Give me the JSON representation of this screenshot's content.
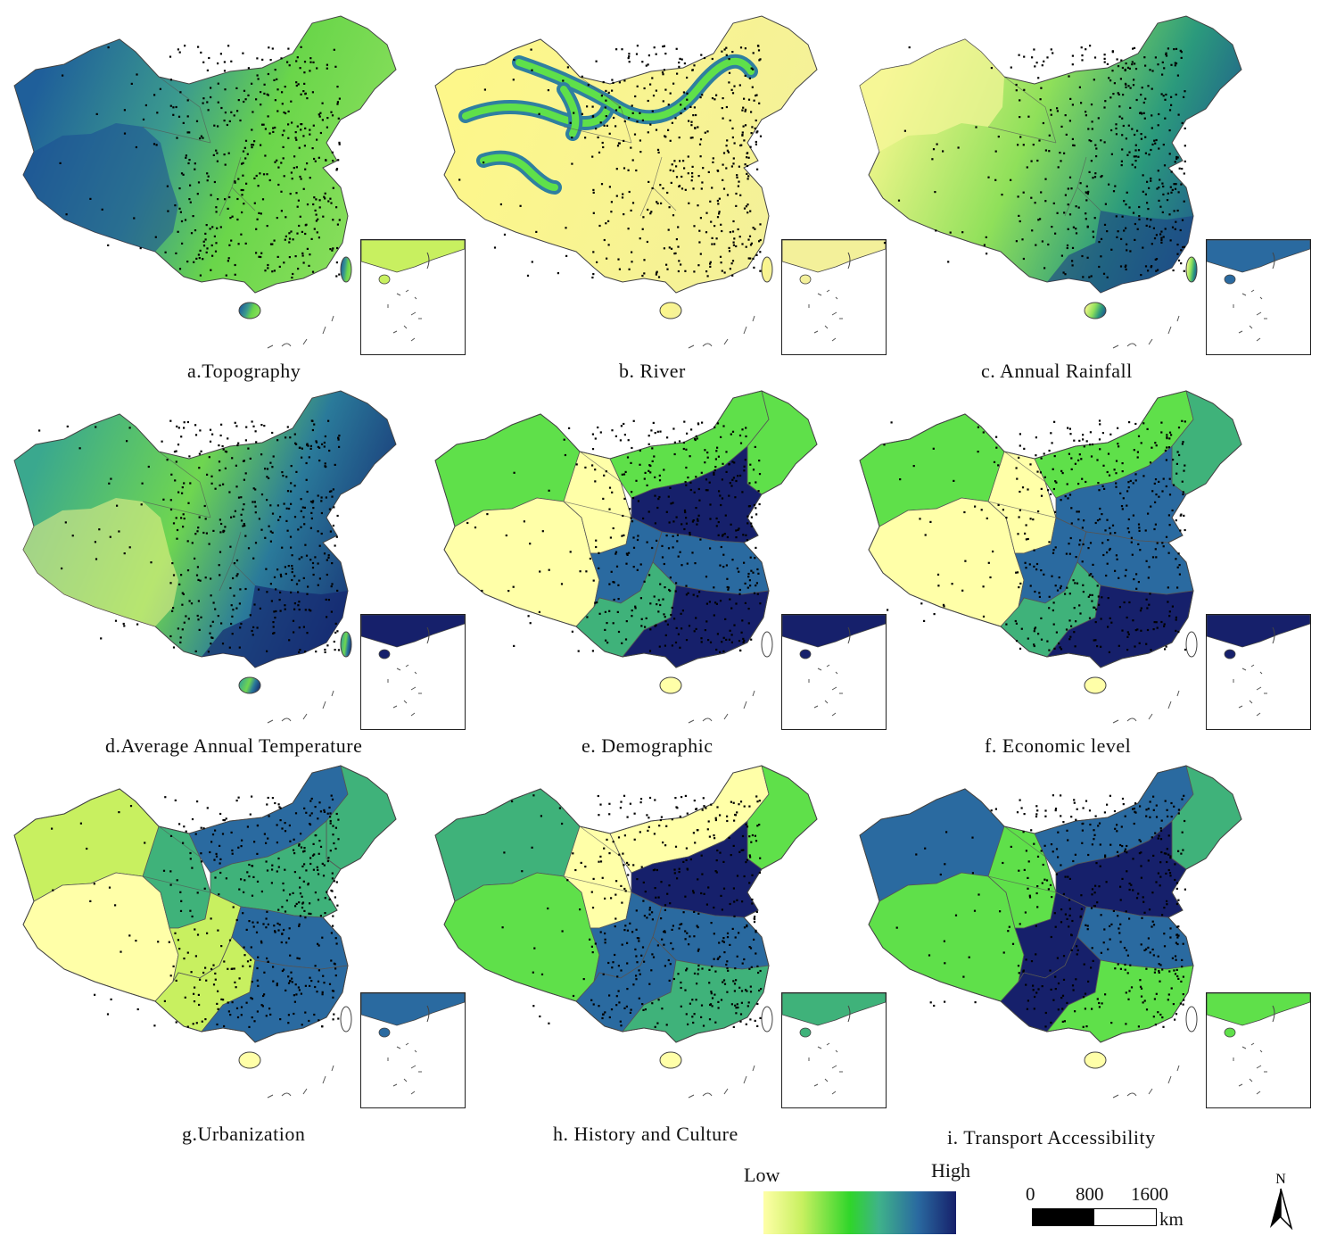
{
  "panels": [
    {
      "caption": "a.Topography",
      "style": "topography"
    },
    {
      "caption": "b. River",
      "style": "river"
    },
    {
      "caption": "c. Annual Rainfall",
      "style": "rainfall"
    },
    {
      "caption": "d.Average Annual Temperature",
      "style": "temperature"
    },
    {
      "caption": "e. Demographic",
      "style": "demographic"
    },
    {
      "caption": "f. Economic level",
      "style": "economic"
    },
    {
      "caption": "g.Urbanization",
      "style": "urbanization"
    },
    {
      "caption": "h. History and Culture",
      "style": "history"
    },
    {
      "caption": "i. Transport Accessibility",
      "style": "transport"
    }
  ],
  "legend": {
    "low_label": "Low",
    "high_label": "High",
    "colors": [
      "#ffffa8",
      "#c8f060",
      "#2fd52a",
      "#3fb28a",
      "#2a6aa0",
      "#16206b"
    ]
  },
  "scale": {
    "ticks": [
      "0",
      "800",
      "1600"
    ],
    "unit": "km"
  },
  "north_label": "N"
}
